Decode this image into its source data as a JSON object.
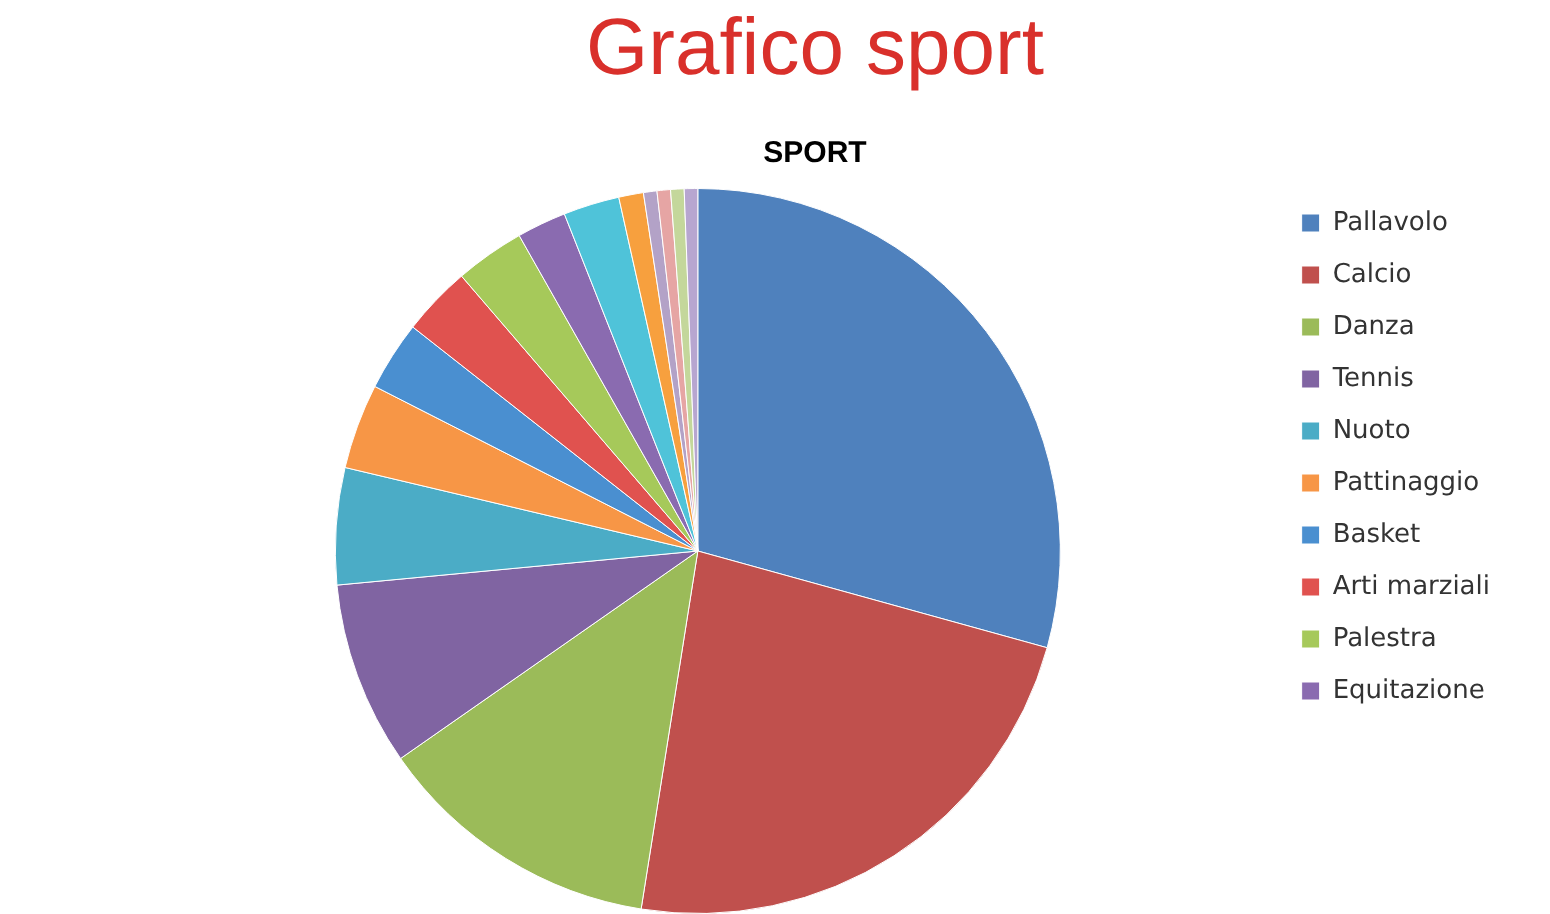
{
  "chart_data": {
    "type": "pie",
    "title": "Grafico sport",
    "subtitle": "SPORT",
    "categories": [
      "Pallavolo",
      "Calcio",
      "Danza",
      "Tennis",
      "Nuoto",
      "Pattinaggio",
      "Basket",
      "Arti marziali",
      "Palestra",
      "Equitazione",
      null,
      null,
      null,
      null,
      null,
      null
    ],
    "values": [
      29.3,
      23.2,
      12.8,
      8.2,
      5.2,
      3.8,
      3.1,
      3.1,
      3.1,
      2.2,
      2.5,
      1.1,
      0.6,
      0.6,
      0.6,
      0.6
    ],
    "colors": [
      "#4f81bd",
      "#c0504d",
      "#9bbb59",
      "#8064a2",
      "#4bacc6",
      "#f79646",
      "#4a8fd0",
      "#e0524f",
      "#a6c95a",
      "#8a6bb0",
      "#4fc3d9",
      "#f7a03e",
      "#b3a2c7",
      "#e6a5a4",
      "#c4d79b",
      "#b7a6d0"
    ],
    "legend": "right"
  }
}
